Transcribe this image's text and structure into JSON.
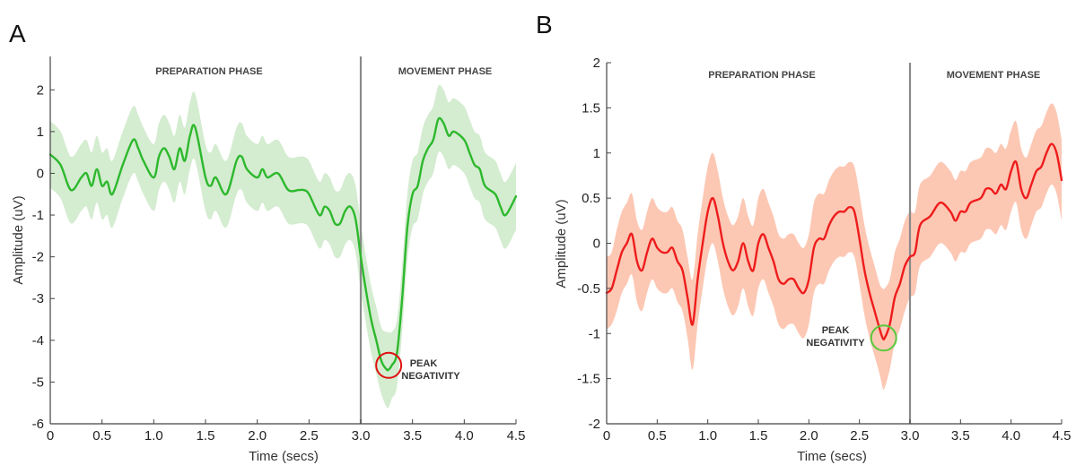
{
  "colors": {
    "a_line": "#2db82d",
    "a_band": "#d4ecd0",
    "a_marker": "#e01010",
    "b_line": "#ee1c1c",
    "b_band": "#fcc8b4",
    "b_marker": "#5ac83c",
    "divider": "#8a8a8a",
    "axis": "#444444"
  },
  "chart_data": [
    {
      "panel_label": "A",
      "type": "line",
      "xlabel": "Time (secs)",
      "ylabel": "Amplitude (uV)",
      "xlim": [
        0,
        4.5
      ],
      "ylim": [
        -6,
        2.8
      ],
      "x_ticks": [
        0,
        0.5,
        1.0,
        1.5,
        2.0,
        2.5,
        3.0,
        3.5,
        4.0,
        4.5
      ],
      "x_tick_labels": [
        "0",
        "0.5",
        "1.0",
        "1.5",
        "2.0",
        "2.5",
        "3.0",
        "3.5",
        "4.0",
        "4.5"
      ],
      "y_ticks": [
        -6,
        -5,
        -4,
        -3,
        -2,
        -1,
        0,
        1,
        2
      ],
      "y_tick_labels": [
        "-6",
        "-5",
        "-4",
        "-3",
        "-2",
        "-1",
        "0",
        "1",
        "2"
      ],
      "grid": false,
      "phase_divider_x": 3.0,
      "phase_labels": [
        "PREPARATION PHASE",
        "MOVEMENT PHASE"
      ],
      "annotation": {
        "text_lines": [
          "PEAK",
          "NEGATIVITY"
        ],
        "x": 3.27,
        "y": -4.6
      },
      "series": [
        {
          "x": [
            0,
            0.1,
            0.2,
            0.3,
            0.35,
            0.4,
            0.45,
            0.5,
            0.55,
            0.6,
            0.7,
            0.8,
            0.85,
            0.9,
            1.0,
            1.05,
            1.1,
            1.15,
            1.2,
            1.25,
            1.3,
            1.35,
            1.4,
            1.5,
            1.55,
            1.6,
            1.7,
            1.8,
            1.85,
            1.9,
            2.0,
            2.05,
            2.1,
            2.2,
            2.3,
            2.4,
            2.45,
            2.5,
            2.6,
            2.65,
            2.7,
            2.75,
            2.8,
            2.85,
            2.9,
            2.95,
            3.0,
            3.05,
            3.1,
            3.15,
            3.2,
            3.25,
            3.27,
            3.3,
            3.35,
            3.4,
            3.45,
            3.5,
            3.55,
            3.6,
            3.65,
            3.7,
            3.75,
            3.8,
            3.85,
            3.9,
            4.0,
            4.05,
            4.1,
            4.15,
            4.2,
            4.3,
            4.35,
            4.4,
            4.5
          ],
          "y": [
            0.45,
            0.2,
            -0.4,
            -0.1,
            0.0,
            -0.3,
            0.1,
            -0.3,
            -0.2,
            -0.5,
            0.2,
            0.8,
            0.6,
            0.3,
            -0.1,
            0.4,
            0.6,
            0.4,
            0.1,
            0.6,
            0.3,
            0.9,
            1.1,
            -0.1,
            -0.3,
            -0.1,
            -0.5,
            0.3,
            0.4,
            0.1,
            -0.1,
            0.1,
            -0.1,
            0.0,
            -0.4,
            -0.4,
            -0.4,
            -0.5,
            -1.0,
            -0.8,
            -0.9,
            -1.2,
            -1.2,
            -0.9,
            -0.8,
            -1.1,
            -2.0,
            -2.8,
            -3.5,
            -4.0,
            -4.5,
            -4.7,
            -4.7,
            -4.6,
            -4.3,
            -3.0,
            -1.3,
            -0.5,
            -0.3,
            0.3,
            0.6,
            0.8,
            1.3,
            1.2,
            0.9,
            1.0,
            0.8,
            0.5,
            0.2,
            0.1,
            -0.3,
            -0.5,
            -0.8,
            -1.0,
            -0.55
          ],
          "lower": [
            -0.35,
            -0.6,
            -1.2,
            -0.9,
            -0.8,
            -1.1,
            -0.7,
            -1.1,
            -1.0,
            -1.3,
            -0.6,
            0.0,
            -0.2,
            -0.5,
            -0.9,
            -0.4,
            -0.2,
            -0.4,
            -0.7,
            -0.2,
            -0.5,
            0.1,
            0.3,
            -0.9,
            -1.1,
            -0.9,
            -1.3,
            -0.5,
            -0.4,
            -0.7,
            -0.9,
            -0.7,
            -0.9,
            -0.8,
            -1.2,
            -1.2,
            -1.2,
            -1.3,
            -1.8,
            -1.6,
            -1.7,
            -2.0,
            -2.0,
            -1.7,
            -1.6,
            -1.9,
            -2.8,
            -3.6,
            -4.3,
            -4.8,
            -5.3,
            -5.6,
            -5.6,
            -5.4,
            -5.1,
            -3.8,
            -2.1,
            -1.3,
            -1.1,
            -0.5,
            -0.2,
            0.0,
            0.5,
            0.4,
            0.1,
            0.2,
            0.0,
            -0.3,
            -0.6,
            -0.7,
            -1.1,
            -1.3,
            -1.6,
            -1.8,
            -1.35
          ],
          "upper": [
            1.25,
            1.0,
            0.4,
            0.7,
            0.8,
            0.5,
            0.9,
            0.5,
            0.6,
            0.3,
            1.0,
            1.6,
            1.4,
            1.1,
            0.7,
            1.2,
            1.4,
            1.2,
            0.9,
            1.4,
            1.1,
            1.7,
            1.9,
            0.7,
            0.5,
            0.7,
            0.3,
            1.1,
            1.2,
            0.9,
            0.7,
            0.9,
            0.7,
            0.8,
            0.4,
            0.4,
            0.4,
            0.3,
            -0.2,
            0.0,
            -0.1,
            -0.4,
            -0.4,
            -0.1,
            0.0,
            -0.3,
            -1.2,
            -2.0,
            -2.7,
            -3.2,
            -3.7,
            -3.8,
            -3.8,
            -3.8,
            -3.5,
            -2.2,
            -0.5,
            0.3,
            0.5,
            1.1,
            1.4,
            1.6,
            2.1,
            2.0,
            1.7,
            1.8,
            1.6,
            1.3,
            1.0,
            0.9,
            0.5,
            0.3,
            0.0,
            -0.2,
            0.25
          ]
        }
      ]
    },
    {
      "panel_label": "B",
      "type": "line",
      "xlabel": "Time (secs)",
      "ylabel": "Amplitude (uV)",
      "xlim": [
        0,
        4.5
      ],
      "ylim": [
        -2,
        2
      ],
      "x_ticks": [
        0,
        0.5,
        1.0,
        1.5,
        2.0,
        2.5,
        3.0,
        3.5,
        4.0,
        4.5
      ],
      "x_tick_labels": [
        "0",
        "0.5",
        "1.0",
        "1.5",
        "2.0",
        "2.5",
        "3.0",
        "3.5",
        "4.0",
        "4.5"
      ],
      "y_ticks": [
        -2,
        -1.5,
        -1,
        -0.5,
        0,
        0.5,
        1,
        1.5,
        2
      ],
      "y_tick_labels": [
        "-2",
        "-1.5",
        "-1",
        "-0.5",
        "0",
        "0.5",
        "1",
        "1.5",
        "2"
      ],
      "grid": false,
      "phase_divider_x": 3.0,
      "phase_labels": [
        "PREPARATION PHASE",
        "MOVEMENT PHASE"
      ],
      "annotation": {
        "text_lines": [
          "PEAK",
          "NEGATIVITY"
        ],
        "x": 2.74,
        "y": -1.05
      },
      "series": [
        {
          "x": [
            0,
            0.05,
            0.1,
            0.15,
            0.2,
            0.25,
            0.3,
            0.35,
            0.4,
            0.45,
            0.5,
            0.55,
            0.6,
            0.65,
            0.7,
            0.75,
            0.8,
            0.85,
            0.9,
            0.95,
            1.0,
            1.05,
            1.1,
            1.15,
            1.2,
            1.25,
            1.3,
            1.35,
            1.4,
            1.45,
            1.5,
            1.55,
            1.6,
            1.65,
            1.7,
            1.75,
            1.8,
            1.85,
            1.9,
            1.95,
            2.0,
            2.05,
            2.1,
            2.15,
            2.2,
            2.25,
            2.3,
            2.35,
            2.4,
            2.45,
            2.5,
            2.55,
            2.6,
            2.65,
            2.7,
            2.73,
            2.75,
            2.8,
            2.85,
            2.9,
            2.95,
            3.0,
            3.05,
            3.1,
            3.2,
            3.3,
            3.4,
            3.45,
            3.5,
            3.55,
            3.6,
            3.7,
            3.75,
            3.8,
            3.85,
            3.9,
            3.95,
            4.0,
            4.05,
            4.1,
            4.15,
            4.2,
            4.25,
            4.3,
            4.35,
            4.4,
            4.45,
            4.5
          ],
          "y": [
            -0.55,
            -0.5,
            -0.3,
            -0.1,
            0.0,
            0.1,
            -0.2,
            -0.3,
            -0.1,
            0.05,
            -0.05,
            -0.1,
            -0.1,
            -0.05,
            -0.2,
            -0.3,
            -0.6,
            -0.9,
            -0.4,
            0.0,
            0.35,
            0.5,
            0.3,
            0.0,
            -0.2,
            -0.3,
            -0.2,
            0.0,
            -0.2,
            -0.3,
            0.0,
            0.1,
            -0.05,
            -0.2,
            -0.4,
            -0.45,
            -0.4,
            -0.4,
            -0.5,
            -0.55,
            -0.4,
            -0.05,
            0.05,
            0.05,
            0.2,
            0.3,
            0.35,
            0.35,
            0.4,
            0.35,
            0.05,
            -0.3,
            -0.55,
            -0.75,
            -0.95,
            -1.05,
            -1.05,
            -0.9,
            -0.6,
            -0.45,
            -0.25,
            -0.15,
            -0.1,
            0.2,
            0.3,
            0.45,
            0.35,
            0.25,
            0.35,
            0.35,
            0.45,
            0.5,
            0.6,
            0.6,
            0.55,
            0.65,
            0.6,
            0.8,
            0.9,
            0.6,
            0.5,
            0.65,
            0.8,
            0.85,
            1.0,
            1.1,
            1.0,
            0.7
          ],
          "lower": [
            -0.95,
            -0.9,
            -0.75,
            -0.55,
            -0.45,
            -0.35,
            -0.65,
            -0.75,
            -0.55,
            -0.4,
            -0.5,
            -0.55,
            -0.55,
            -0.5,
            -0.65,
            -0.75,
            -1.05,
            -1.4,
            -0.9,
            -0.5,
            -0.15,
            0.0,
            -0.2,
            -0.5,
            -0.7,
            -0.8,
            -0.7,
            -0.5,
            -0.7,
            -0.8,
            -0.5,
            -0.4,
            -0.55,
            -0.7,
            -0.9,
            -0.95,
            -0.9,
            -0.9,
            -1.0,
            -1.05,
            -0.9,
            -0.55,
            -0.45,
            -0.45,
            -0.3,
            -0.2,
            -0.15,
            -0.15,
            -0.1,
            -0.15,
            -0.45,
            -0.8,
            -1.05,
            -1.25,
            -1.45,
            -1.6,
            -1.6,
            -1.4,
            -1.1,
            -0.95,
            -0.75,
            -0.6,
            -0.55,
            -0.25,
            -0.15,
            0.0,
            -0.1,
            -0.2,
            -0.1,
            -0.1,
            0.0,
            0.05,
            0.15,
            0.15,
            0.1,
            0.2,
            0.15,
            0.35,
            0.45,
            0.15,
            0.05,
            0.2,
            0.35,
            0.4,
            0.55,
            0.65,
            0.55,
            0.25
          ],
          "upper": [
            -0.15,
            -0.1,
            0.15,
            0.35,
            0.45,
            0.55,
            0.25,
            0.15,
            0.35,
            0.5,
            0.4,
            0.35,
            0.35,
            0.4,
            0.25,
            0.15,
            -0.15,
            -0.4,
            0.1,
            0.5,
            0.85,
            1.0,
            0.8,
            0.5,
            0.3,
            0.2,
            0.3,
            0.5,
            0.3,
            0.2,
            0.5,
            0.6,
            0.45,
            0.3,
            0.1,
            0.05,
            0.1,
            0.1,
            0.0,
            -0.05,
            0.1,
            0.45,
            0.55,
            0.55,
            0.7,
            0.8,
            0.85,
            0.85,
            0.9,
            0.85,
            0.55,
            0.2,
            -0.05,
            -0.25,
            -0.45,
            -0.5,
            -0.5,
            -0.4,
            -0.1,
            0.05,
            0.25,
            0.35,
            0.35,
            0.65,
            0.75,
            0.9,
            0.8,
            0.7,
            0.8,
            0.8,
            0.9,
            0.95,
            1.05,
            1.05,
            1.0,
            1.1,
            1.05,
            1.25,
            1.35,
            1.05,
            0.95,
            1.1,
            1.25,
            1.3,
            1.45,
            1.55,
            1.45,
            1.15
          ]
        }
      ]
    }
  ]
}
